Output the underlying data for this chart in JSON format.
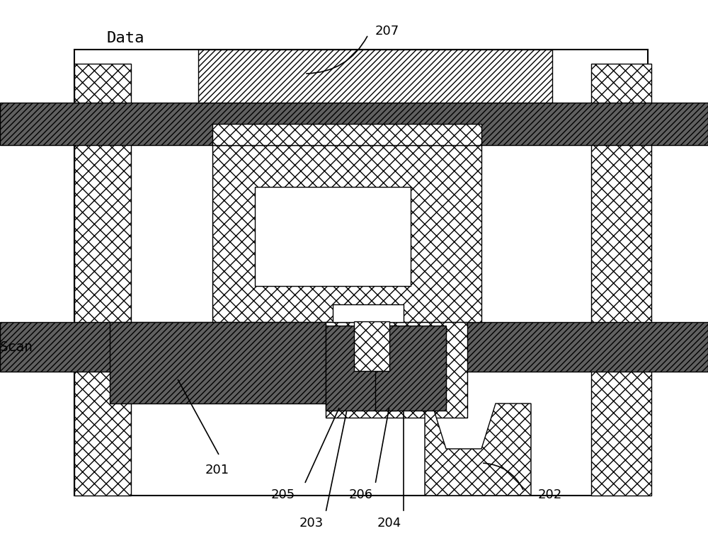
{
  "bg_color": "#ffffff",
  "black": "#000000",
  "white": "#ffffff",
  "label_data": "Data",
  "label_scan": "Scan",
  "label_207": "207",
  "label_201": "201",
  "label_202": "202",
  "label_203": "203",
  "label_204": "204",
  "label_205": "205",
  "label_206": "206",
  "gray_dark": "#606060",
  "gray_mid": "#909090",
  "gray_light": "#c0c0c0"
}
